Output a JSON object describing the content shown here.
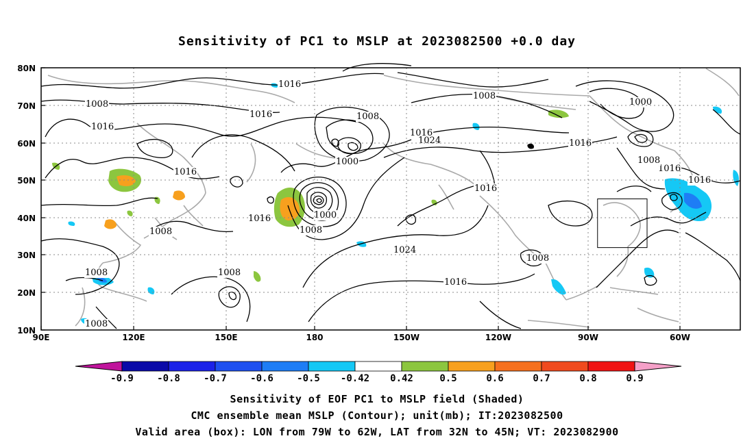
{
  "title": "Sensitivity of PC1 to MSLP at 2023082500 +0.0 day",
  "lat_labels": [
    "80N",
    "70N",
    "60N",
    "50N",
    "40N",
    "30N",
    "20N",
    "10N"
  ],
  "lon_labels": [
    "90E",
    "120E",
    "150E",
    "180",
    "150W",
    "120W",
    "90W",
    "60W"
  ],
  "contour_labels": {
    "c1016a": "1016",
    "c1016b": "1016",
    "c1016c": "1016",
    "c1016d": "1016",
    "c1016e": "1016",
    "c1016f": "1016",
    "c1016g": "1016",
    "c1016h": "1016",
    "c1016i": "1016",
    "c1016j": "1016",
    "c1016k": "1016",
    "c1008a": "1008",
    "c1008b": "1008",
    "c1008c": "1008",
    "c1008d": "1008",
    "c1008e": "1008",
    "c1008f": "1008",
    "c1008g": "1008",
    "c1008h": "1008",
    "c1008i": "1008",
    "c1008j": "1008",
    "c1000a": "1000",
    "c1000b": "1000",
    "c1000c": "1000",
    "c1024a": "1024",
    "c1024b": "1024"
  },
  "colorbar": {
    "labels": [
      "-0.9",
      "-0.8",
      "-0.7",
      "-0.6",
      "-0.5",
      "-0.42",
      "0.42",
      "0.5",
      "0.6",
      "0.7",
      "0.8",
      "0.9"
    ],
    "colors": {
      "below": "#c0149c",
      "bins": [
        "#0a0aa8",
        "#1b22e8",
        "#1e50f0",
        "#1e7df5",
        "#15c8f5",
        "#ffffff",
        "#8cc63f",
        "#f7a01e",
        "#f5701e",
        "#f04a1e",
        "#f01414"
      ],
      "above": "#f5a0c8"
    }
  },
  "valid_box": {
    "lon_min": -79,
    "lon_max": -62,
    "lat_min": 32,
    "lat_max": 45
  },
  "captions": {
    "line1": "Sensitivity of EOF PC1 to MSLP field (Shaded)",
    "line2": "CMC ensemble mean MSLP (Contour); unit(mb); IT:2023082500",
    "line3": "Valid area (box): LON from 79W to 62W, LAT from 32N to 45N; VT: 2023082900"
  }
}
